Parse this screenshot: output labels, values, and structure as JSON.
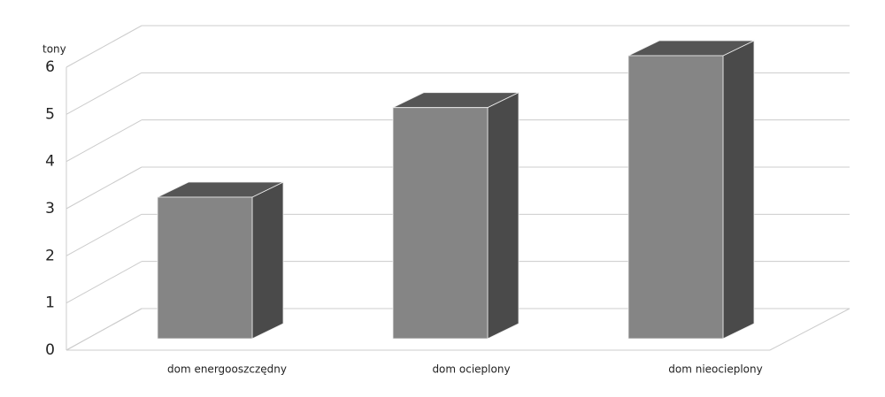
{
  "chart_data": {
    "type": "bar3d",
    "y_axis_label": "tony",
    "categories": [
      "dom energooszczędny",
      "dom ocieplony",
      "dom nieocieplony"
    ],
    "values": [
      3,
      4.9,
      6
    ],
    "color": "#858585",
    "ylim": [
      0,
      6
    ],
    "yticks": [
      0,
      1,
      2,
      3,
      4,
      5,
      6
    ],
    "grid": true
  }
}
